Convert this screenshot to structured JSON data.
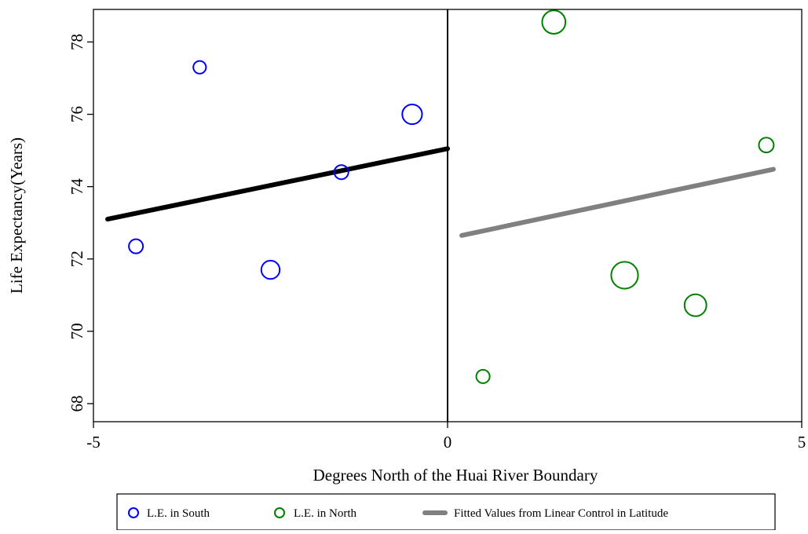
{
  "chart_data": {
    "type": "scatter",
    "xlabel": "Degrees North of the Huai River Boundary",
    "ylabel": "Life Expectancy(Years)",
    "xlim": [
      -5,
      5
    ],
    "ylim": [
      67.5,
      78.9
    ],
    "xticks": [
      -5,
      0,
      5
    ],
    "yticks": [
      68,
      70,
      72,
      74,
      76,
      78
    ],
    "boundary_x": 0,
    "grid": false,
    "legend_position": "bottom",
    "series": [
      {
        "name": "L.E. in South",
        "color": "#0000ff",
        "marker": "hollow-circle",
        "points": [
          {
            "x": -4.4,
            "y": 72.35,
            "size": 1.0
          },
          {
            "x": -3.5,
            "y": 77.3,
            "size": 0.9
          },
          {
            "x": -2.5,
            "y": 71.7,
            "size": 1.3
          },
          {
            "x": -1.5,
            "y": 74.4,
            "size": 1.0
          },
          {
            "x": -0.5,
            "y": 76.0,
            "size": 1.4
          }
        ]
      },
      {
        "name": "L.E. in North",
        "color": "#008000",
        "marker": "hollow-circle",
        "points": [
          {
            "x": 0.5,
            "y": 68.75,
            "size": 0.95
          },
          {
            "x": 1.5,
            "y": 78.55,
            "size": 1.65
          },
          {
            "x": 2.5,
            "y": 71.55,
            "size": 1.9
          },
          {
            "x": 3.5,
            "y": 70.72,
            "size": 1.55
          },
          {
            "x": 4.5,
            "y": 75.15,
            "size": 1.05
          }
        ]
      }
    ],
    "fitted_lines": [
      {
        "name": "",
        "color": "#000000",
        "x": [
          -4.8,
          0
        ],
        "y": [
          73.1,
          75.05
        ]
      },
      {
        "name": "Fitted Values from Linear Control in Latitude",
        "color": "#808080",
        "x": [
          0.2,
          4.6
        ],
        "y": [
          72.65,
          74.48
        ]
      }
    ],
    "legend": [
      "L.E. in South",
      "L.E. in North",
      "Fitted Values from Linear Control in Latitude"
    ]
  }
}
